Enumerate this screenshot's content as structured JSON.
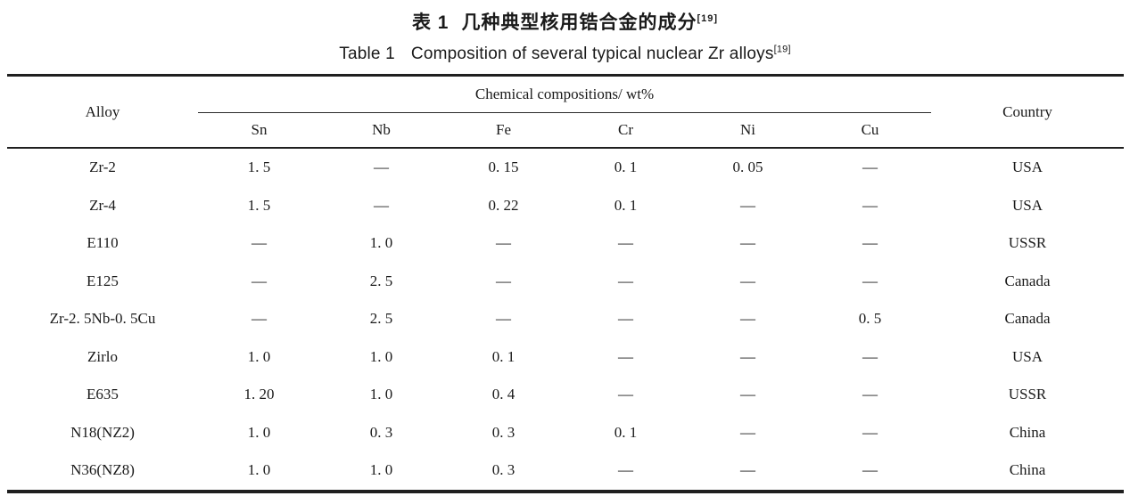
{
  "titles": {
    "chinese": {
      "label": "表 1",
      "text": "几种典型核用锆合金的成分",
      "reference": "[19]"
    },
    "english": {
      "label": "Table 1",
      "text": "Composition of several typical nuclear Zr alloys",
      "reference": "[19]"
    }
  },
  "table": {
    "header": {
      "alloy": "Alloy",
      "group": "Chemical compositions/ wt%",
      "elements": [
        "Sn",
        "Nb",
        "Fe",
        "Cr",
        "Ni",
        "Cu"
      ],
      "country": "Country"
    },
    "rows": [
      {
        "alloy": "Zr-2",
        "sn": "1. 5",
        "nb": "—",
        "fe": "0. 15",
        "cr": "0. 1",
        "ni": "0. 05",
        "cu": "—",
        "country": "USA"
      },
      {
        "alloy": "Zr-4",
        "sn": "1. 5",
        "nb": "—",
        "fe": "0. 22",
        "cr": "0. 1",
        "ni": "—",
        "cu": "—",
        "country": "USA"
      },
      {
        "alloy": "E110",
        "sn": "—",
        "nb": "1. 0",
        "fe": "—",
        "cr": "—",
        "ni": "—",
        "cu": "—",
        "country": "USSR"
      },
      {
        "alloy": "E125",
        "sn": "—",
        "nb": "2. 5",
        "fe": "—",
        "cr": "—",
        "ni": "—",
        "cu": "—",
        "country": "Canada"
      },
      {
        "alloy": "Zr-2. 5Nb-0. 5Cu",
        "sn": "—",
        "nb": "2. 5",
        "fe": "—",
        "cr": "—",
        "ni": "—",
        "cu": "0. 5",
        "country": "Canada"
      },
      {
        "alloy": "Zirlo",
        "sn": "1. 0",
        "nb": "1. 0",
        "fe": "0. 1",
        "cr": "—",
        "ni": "—",
        "cu": "—",
        "country": "USA"
      },
      {
        "alloy": "E635",
        "sn": "1. 20",
        "nb": "1. 0",
        "fe": "0. 4",
        "cr": "—",
        "ni": "—",
        "cu": "—",
        "country": "USSR"
      },
      {
        "alloy": "N18(NZ2)",
        "sn": "1. 0",
        "nb": "0. 3",
        "fe": "0. 3",
        "cr": "0. 1",
        "ni": "—",
        "cu": "—",
        "country": "China"
      },
      {
        "alloy": "N36(NZ8)",
        "sn": "1. 0",
        "nb": "1. 0",
        "fe": "0. 3",
        "cr": "—",
        "ni": "—",
        "cu": "—",
        "country": "China"
      }
    ]
  }
}
